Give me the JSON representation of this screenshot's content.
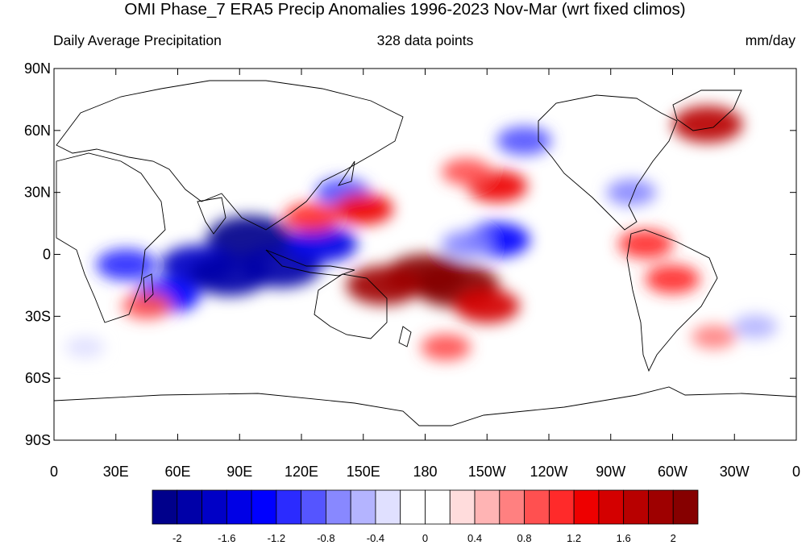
{
  "title": "OMI Phase_7 ERA5 Precip Anomalies 1996-2023 Nov-Mar (wrt fixed climos)",
  "left_label": "Daily Average Precipitation",
  "center_label": "328 data points",
  "right_label": "mm/day",
  "map": {
    "projection": "cylindrical-equidistant",
    "lon_range": [
      0,
      360
    ],
    "lat_range": [
      -90,
      90
    ],
    "lat_ticks": [
      "90N",
      "60N",
      "30N",
      "0",
      "30S",
      "60S",
      "90S"
    ],
    "lon_ticks": [
      "0",
      "30E",
      "60E",
      "90E",
      "120E",
      "150E",
      "180",
      "150W",
      "120W",
      "90W",
      "60W",
      "30W",
      "0"
    ],
    "anomaly_patches": [
      {
        "lon": 95,
        "lat": 8,
        "value": -2.2
      },
      {
        "lon": 110,
        "lat": -6,
        "value": -2.0
      },
      {
        "lon": 70,
        "lat": -5,
        "value": -1.8
      },
      {
        "lon": 85,
        "lat": -10,
        "value": -2.0
      },
      {
        "lon": 130,
        "lat": 5,
        "value": -1.6
      },
      {
        "lon": 55,
        "lat": -20,
        "value": -1.4
      },
      {
        "lon": 35,
        "lat": -5,
        "value": -1.2
      },
      {
        "lon": 140,
        "lat": 30,
        "value": -1.0
      },
      {
        "lon": 215,
        "lat": 7,
        "value": -1.4
      },
      {
        "lon": 200,
        "lat": 5,
        "value": -0.8
      },
      {
        "lon": 228,
        "lat": 55,
        "value": -1.0
      },
      {
        "lon": 280,
        "lat": 30,
        "value": -0.8
      },
      {
        "lon": 340,
        "lat": -35,
        "value": -0.6
      },
      {
        "lon": 15,
        "lat": -45,
        "value": -0.4
      },
      {
        "lon": 195,
        "lat": -15,
        "value": 2.2
      },
      {
        "lon": 180,
        "lat": -10,
        "value": 2.0
      },
      {
        "lon": 160,
        "lat": -15,
        "value": 1.8
      },
      {
        "lon": 210,
        "lat": -25,
        "value": 1.4
      },
      {
        "lon": 150,
        "lat": 22,
        "value": 1.2
      },
      {
        "lon": 125,
        "lat": 18,
        "value": 1.0
      },
      {
        "lon": 215,
        "lat": 33,
        "value": 1.2
      },
      {
        "lon": 200,
        "lat": 40,
        "value": 0.8
      },
      {
        "lon": 317,
        "lat": 63,
        "value": 1.6
      },
      {
        "lon": 300,
        "lat": -12,
        "value": 1.0
      },
      {
        "lon": 287,
        "lat": 5,
        "value": 1.0
      },
      {
        "lon": 45,
        "lat": -25,
        "value": 0.8
      },
      {
        "lon": 190,
        "lat": -45,
        "value": 0.8
      },
      {
        "lon": 320,
        "lat": -40,
        "value": 0.6
      }
    ]
  },
  "colorbar": {
    "labels": [
      "-2",
      "-1.6",
      "-1.2",
      "-0.8",
      "-0.4",
      "0",
      "0.4",
      "0.8",
      "1.2",
      "1.6",
      "2"
    ],
    "colors": [
      "#00008b",
      "#0000a8",
      "#0000c6",
      "#0000e6",
      "#0000ff",
      "#2b2bff",
      "#5555ff",
      "#8888ff",
      "#b4b4ff",
      "#e0e0ff",
      "#ffffff",
      "#ffffff",
      "#ffdcdc",
      "#ffb4b4",
      "#ff8080",
      "#ff5050",
      "#ff2a2a",
      "#ee0000",
      "#d40000",
      "#b80000",
      "#9e0000",
      "#860000"
    ]
  }
}
